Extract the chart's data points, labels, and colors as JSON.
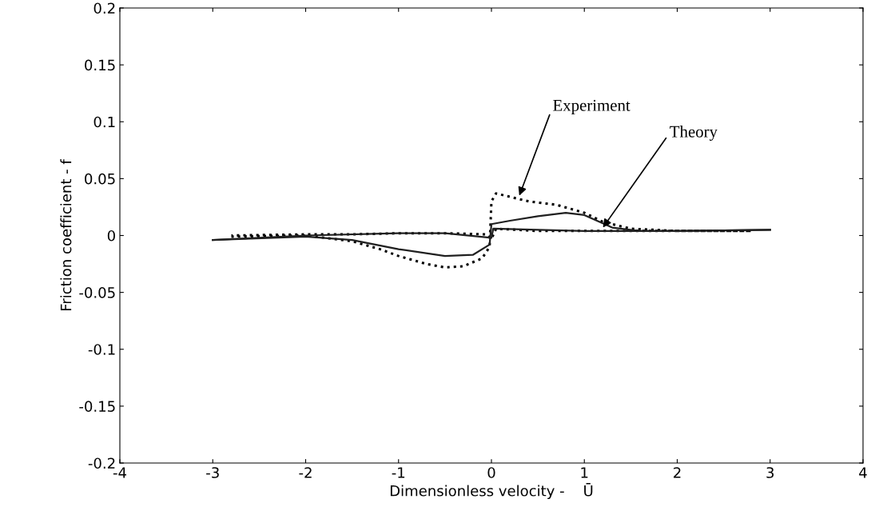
{
  "chart_data": {
    "type": "line",
    "xlabel": "Dimensionless velocity -    Ū",
    "ylabel": "Friction coefficient - f",
    "xlim": [
      -4,
      4
    ],
    "xticks": [
      -4,
      -3,
      -2,
      -1,
      0,
      1,
      2,
      3,
      4
    ],
    "ylim": [
      -0.2,
      0.2
    ],
    "yticks": [
      -0.2,
      -0.15,
      -0.1,
      -0.05,
      0,
      0.05,
      0.1,
      0.15,
      0.2
    ],
    "grid": false,
    "series": [
      {
        "color": "#000000",
        "line_style": "dotted",
        "x": [
          -2.8,
          -2,
          -1.5,
          -1.2,
          -1,
          -0.7,
          -0.5,
          -0.3,
          -0.1,
          -0.02,
          0,
          0.05,
          0.2,
          0.4,
          0.7,
          1,
          1.2,
          1.5,
          2,
          2.8,
          2,
          1.5,
          1,
          0.5,
          0.05,
          0,
          -0.05,
          -0.5,
          -1,
          -1.5,
          -2,
          -2.8
        ],
        "values": [
          -0.001,
          0,
          -0.005,
          -0.012,
          -0.018,
          -0.025,
          -0.028,
          -0.027,
          -0.02,
          -0.01,
          0.03,
          0.037,
          0.034,
          0.03,
          0.027,
          0.02,
          0.012,
          0.006,
          0.004,
          0.004,
          0.004,
          0.004,
          0.004,
          0.004,
          0.006,
          -0.003,
          0.001,
          0.002,
          0.002,
          0.001,
          0.001,
          0
        ]
      },
      {
        "color": "#202020",
        "line_style": "solid",
        "x": [
          -3,
          -2,
          -1.5,
          -1,
          -0.5,
          -0.2,
          -0.02,
          0,
          0.2,
          0.5,
          0.8,
          1,
          1.3,
          1.6,
          2,
          3
        ],
        "values": [
          -0.004,
          -0.001,
          -0.004,
          -0.012,
          -0.018,
          -0.017,
          -0.008,
          0.01,
          0.013,
          0.017,
          0.02,
          0.018,
          0.007,
          0.004,
          0.004,
          0.005
        ]
      },
      {
        "color": "#202020",
        "line_style": "solid",
        "x": [
          -3,
          -2,
          -1,
          -0.5,
          0,
          0.02,
          0.5,
          1,
          2,
          3
        ],
        "values": [
          -0.004,
          0,
          0.002,
          0.002,
          -0.002,
          0.006,
          0.005,
          0.004,
          0.004,
          0.005
        ]
      }
    ],
    "annotations": [
      {
        "text": "Experiment",
        "x": 0.3,
        "y": 0.035
      },
      {
        "text": "Theory",
        "x": 1.2,
        "y": 0.007
      }
    ]
  }
}
